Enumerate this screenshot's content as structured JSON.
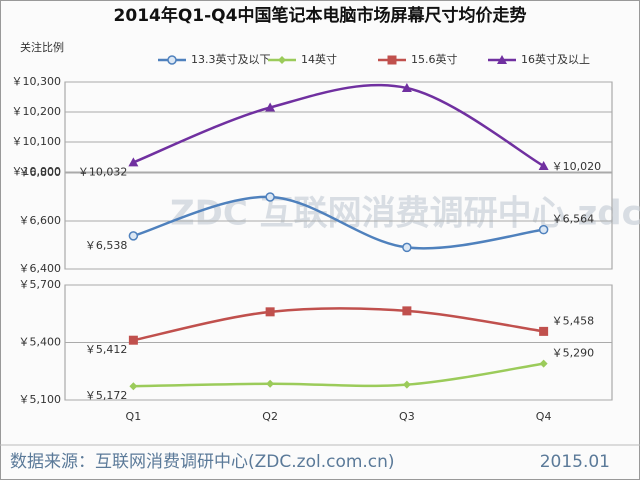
{
  "chart_data": {
    "type": "line",
    "title": "2014年Q1-Q4中国笔记本电脑市场屏幕尺寸均价走势",
    "y_label": "关注比例",
    "watermark": "ZDC 互联网消费调研中心 zdc.zol.com.cn",
    "categories": [
      "Q1",
      "Q2",
      "Q3",
      "Q4"
    ],
    "panels": [
      {
        "ylim": [
          10000,
          10300
        ],
        "yticks": [
          {
            "value": 10000,
            "label": "￥10,000"
          },
          {
            "value": 10100,
            "label": "￥10,100"
          },
          {
            "value": 10200,
            "label": "￥10,200"
          },
          {
            "value": 10300,
            "label": "￥10,300"
          }
        ]
      },
      {
        "ylim": [
          6400,
          6800
        ],
        "yticks": [
          {
            "value": 6400,
            "label": "￥6,400"
          },
          {
            "value": 6600,
            "label": "￥6,600"
          },
          {
            "value": 6800,
            "label": "￥6,800"
          }
        ]
      },
      {
        "ylim": [
          5100,
          5700
        ],
        "yticks": [
          {
            "value": 5100,
            "label": "￥5,100"
          },
          {
            "value": 5400,
            "label": "￥5,400"
          },
          {
            "value": 5700,
            "label": "￥5,700"
          }
        ]
      }
    ],
    "series": [
      {
        "name": "13.3英寸及以下",
        "color": "#4f81bd",
        "marker": "circle",
        "panel": 1,
        "values": [
          6538,
          6700,
          6490,
          6564
        ],
        "value_labels": [
          "￥6,538",
          null,
          null,
          "￥6,564"
        ]
      },
      {
        "name": "14英寸",
        "color": "#9bcb5a",
        "marker": "diamond",
        "panel": 2,
        "values": [
          5172,
          5185,
          5180,
          5290
        ],
        "value_labels": [
          "￥5,172",
          null,
          null,
          "￥5,290"
        ]
      },
      {
        "name": "15.6英寸",
        "color": "#c0504d",
        "marker": "square",
        "panel": 2,
        "values": [
          5412,
          5560,
          5565,
          5458
        ],
        "value_labels": [
          "￥5,412",
          null,
          null,
          "￥5,458"
        ]
      },
      {
        "name": "16英寸及以上",
        "color": "#7030a0",
        "marker": "triangle",
        "panel": 0,
        "values": [
          10032,
          10215,
          10280,
          10020
        ],
        "value_labels": [
          "￥10,032",
          null,
          null,
          "￥10,020"
        ]
      }
    ],
    "source": "数据来源：互联网消费调研中心(ZDC.zol.com.cn)",
    "date": "2015.01",
    "grid": true
  }
}
